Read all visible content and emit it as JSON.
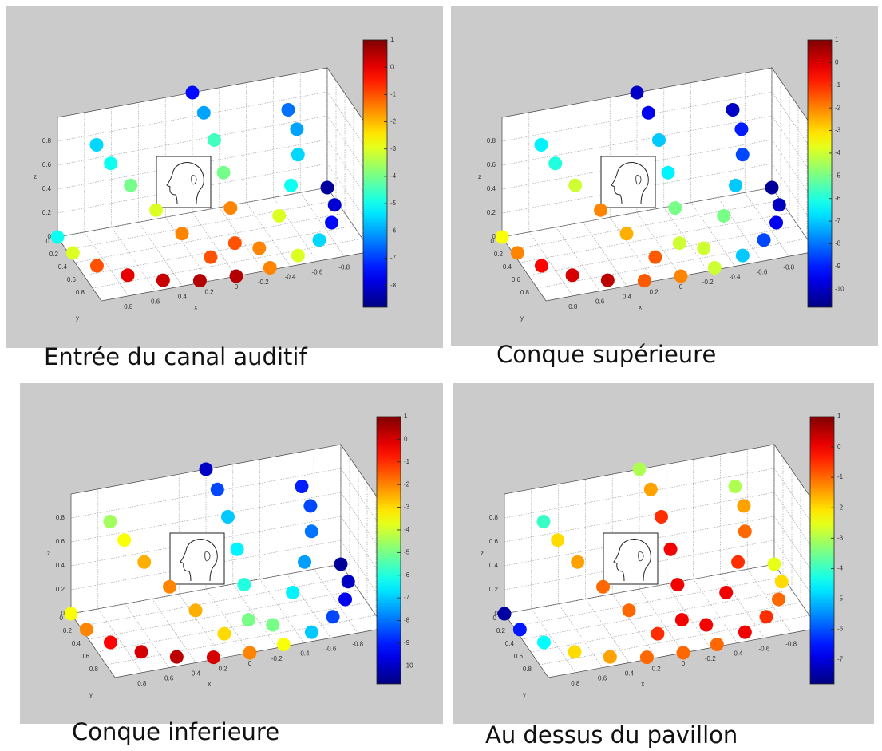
{
  "chart_data": [
    {
      "type": "scatter3d",
      "title": "Entrée du canal auditif",
      "xlabel": "x",
      "ylabel": "y",
      "zlabel": "z",
      "colormap": "jet",
      "grid": true,
      "xlim": [
        -1,
        1
      ],
      "ylim": [
        0,
        1
      ],
      "zlim": [
        0,
        1
      ],
      "xticks": [
        -0.8,
        -0.6,
        -0.4,
        -0.2,
        0,
        0.2,
        0.4,
        0.6,
        0.8
      ],
      "yticks": [
        0,
        0.2,
        0.4,
        0.6,
        0.8
      ],
      "zticks": [
        0,
        0.2,
        0.4,
        0.6,
        0.8
      ],
      "clim": [
        -8.8,
        1
      ],
      "cticks": [
        1,
        0,
        -1,
        -2,
        -3,
        -4,
        -5,
        -6,
        -7,
        -8
      ],
      "x": [
        1,
        0.97,
        0.87,
        0.71,
        0.5,
        0.26,
        0.71,
        0.69,
        0.62,
        0.5,
        0.36,
        0.18,
        0,
        0,
        0,
        0,
        0,
        0,
        -0.71,
        -0.69,
        -0.62,
        -0.5,
        -0.36,
        -0.18,
        -1,
        -0.97,
        -0.87,
        -0.71,
        -0.5,
        -0.26,
        0
      ],
      "y": [
        0,
        0.26,
        0.5,
        0.71,
        0.87,
        0.97,
        0,
        0.26,
        0.5,
        0.71,
        0.87,
        0.97,
        0,
        0.26,
        0.5,
        0.71,
        0.87,
        0.97,
        0,
        0.26,
        0.5,
        0.71,
        0.87,
        0.97,
        0,
        0.26,
        0.5,
        0.71,
        0.87,
        0.97,
        1
      ],
      "z": [
        0,
        0,
        0,
        0,
        0,
        0,
        0.71,
        0.69,
        0.62,
        0.5,
        0.36,
        0.18,
        1,
        0.97,
        0.87,
        0.71,
        0.5,
        0.26,
        0.71,
        0.69,
        0.62,
        0.5,
        0.36,
        0.18,
        0,
        0,
        0,
        0,
        0,
        0,
        0
      ],
      "values": [
        -5,
        -3,
        -1,
        0,
        0.3,
        0.5,
        -5.5,
        -5,
        -4,
        -3,
        -1.5,
        -1,
        -7.5,
        -6,
        -4.5,
        -4,
        -1.5,
        -1,
        -6.5,
        -6,
        -5.5,
        -5,
        -3,
        -1.5,
        -8.5,
        -8,
        -7.5,
        -5.5,
        -3,
        -1.5,
        0.5
      ]
    },
    {
      "type": "scatter3d",
      "title": "Conque supérieure",
      "xlabel": "x",
      "ylabel": "y",
      "zlabel": "z",
      "colormap": "jet",
      "grid": true,
      "xlim": [
        -1,
        1
      ],
      "ylim": [
        0,
        1
      ],
      "zlim": [
        0,
        1
      ],
      "xticks": [
        -0.8,
        -0.6,
        -0.4,
        -0.2,
        0,
        0.2,
        0.4,
        0.6,
        0.8
      ],
      "yticks": [
        0,
        0.2,
        0.4,
        0.6,
        0.8
      ],
      "zticks": [
        0,
        0.2,
        0.4,
        0.6,
        0.8
      ],
      "clim": [
        -10.8,
        1
      ],
      "cticks": [
        1,
        0,
        -1,
        -2,
        -3,
        -4,
        -5,
        -6,
        -7,
        -8,
        -9,
        -10
      ],
      "x": [
        1,
        0.97,
        0.87,
        0.71,
        0.5,
        0.26,
        0.71,
        0.69,
        0.62,
        0.5,
        0.36,
        0.18,
        0,
        0,
        0,
        0,
        0,
        0,
        -0.71,
        -0.69,
        -0.62,
        -0.5,
        -0.36,
        -0.18,
        -1,
        -0.97,
        -0.87,
        -0.71,
        -0.5,
        -0.26,
        0
      ],
      "y": [
        0,
        0.26,
        0.5,
        0.71,
        0.87,
        0.97,
        0,
        0.26,
        0.5,
        0.71,
        0.87,
        0.97,
        0,
        0.26,
        0.5,
        0.71,
        0.87,
        0.97,
        0,
        0.26,
        0.5,
        0.71,
        0.87,
        0.97,
        0,
        0.26,
        0.5,
        0.71,
        0.87,
        0.97,
        1
      ],
      "z": [
        0,
        0,
        0,
        0,
        0,
        0,
        0.71,
        0.69,
        0.62,
        0.5,
        0.36,
        0.18,
        1,
        0.97,
        0.87,
        0.71,
        0.5,
        0.26,
        0.71,
        0.69,
        0.62,
        0.5,
        0.36,
        0.18,
        0,
        0,
        0,
        0,
        0,
        0,
        0
      ],
      "values": [
        -3.5,
        -2,
        -0.5,
        0,
        0.3,
        -1.5,
        -6.5,
        -6,
        -4,
        -2,
        -2.5,
        -1.5,
        -10,
        -9.5,
        -7,
        -6.5,
        -5,
        -4,
        -10,
        -9,
        -8.5,
        -7,
        -5,
        -4,
        -10.5,
        -10,
        -9.5,
        -8.5,
        -7,
        -4,
        -2
      ]
    },
    {
      "type": "scatter3d",
      "title": "Conque inferieure",
      "xlabel": "x",
      "ylabel": "y",
      "zlabel": "z",
      "colormap": "jet",
      "grid": true,
      "xlim": [
        -1,
        1
      ],
      "ylim": [
        0,
        1
      ],
      "zlim": [
        0,
        1
      ],
      "xticks": [
        -0.8,
        -0.6,
        -0.4,
        -0.2,
        0,
        0.2,
        0.4,
        0.6,
        0.8
      ],
      "yticks": [
        0,
        0.2,
        0.4,
        0.6,
        0.8
      ],
      "zticks": [
        0,
        0.2,
        0.4,
        0.6,
        0.8
      ],
      "clim": [
        -10.8,
        1
      ],
      "cticks": [
        1,
        0,
        -1,
        -2,
        -3,
        -4,
        -5,
        -6,
        -7,
        -8,
        -9,
        -10
      ],
      "x": [
        1,
        0.97,
        0.87,
        0.71,
        0.5,
        0.26,
        0.71,
        0.69,
        0.62,
        0.5,
        0.36,
        0.18,
        0,
        0,
        0,
        0,
        0,
        0,
        -0.71,
        -0.69,
        -0.62,
        -0.5,
        -0.36,
        -0.18,
        -1,
        -0.97,
        -0.87,
        -0.71,
        -0.5,
        -0.26,
        0
      ],
      "y": [
        0,
        0.26,
        0.5,
        0.71,
        0.87,
        0.97,
        0,
        0.26,
        0.5,
        0.71,
        0.87,
        0.97,
        0,
        0.26,
        0.5,
        0.71,
        0.87,
        0.97,
        0,
        0.26,
        0.5,
        0.71,
        0.87,
        0.97,
        0,
        0.26,
        0.5,
        0.71,
        0.87,
        0.97,
        1
      ],
      "z": [
        0,
        0,
        0,
        0,
        0,
        0,
        0.71,
        0.69,
        0.62,
        0.5,
        0.36,
        0.18,
        1,
        0.97,
        0.87,
        0.71,
        0.5,
        0.26,
        0.71,
        0.69,
        0.62,
        0.5,
        0.36,
        0.18,
        0,
        0,
        0,
        0,
        0,
        0,
        0
      ],
      "values": [
        -3.5,
        -2,
        -0.5,
        0,
        0.3,
        0,
        -4.5,
        -3.5,
        -2.5,
        -2,
        -2.5,
        -3,
        -10,
        -8.5,
        -7,
        -6.5,
        -6,
        -5,
        -9,
        -8.5,
        -8,
        -7.5,
        -6.5,
        -5,
        -10.5,
        -10,
        -9.5,
        -8.5,
        -7,
        -3.5,
        -2
      ]
    },
    {
      "type": "scatter3d",
      "title": "Au dessus du pavillon",
      "xlabel": "x",
      "ylabel": "y",
      "zlabel": "z",
      "colormap": "jet",
      "grid": true,
      "xlim": [
        -1,
        1
      ],
      "ylim": [
        0,
        1
      ],
      "zlim": [
        0,
        1
      ],
      "xticks": [
        -0.8,
        -0.6,
        -0.4,
        -0.2,
        0,
        0.2,
        0.4,
        0.6,
        0.8
      ],
      "yticks": [
        0,
        0.2,
        0.4,
        0.6,
        0.8
      ],
      "zticks": [
        0,
        0.2,
        0.4,
        0.6,
        0.8
      ],
      "clim": [
        -7.8,
        1
      ],
      "cticks": [
        1,
        0,
        -1,
        -2,
        -3,
        -4,
        -5,
        -6,
        -7
      ],
      "x": [
        1,
        0.97,
        0.87,
        0.71,
        0.5,
        0.26,
        0.71,
        0.69,
        0.62,
        0.5,
        0.36,
        0.18,
        0,
        0,
        0,
        0,
        0,
        0,
        -0.71,
        -0.69,
        -0.62,
        -0.5,
        -0.36,
        -0.18,
        -1,
        -0.97,
        -0.87,
        -0.71,
        -0.5,
        -0.26,
        0
      ],
      "y": [
        0,
        0.26,
        0.5,
        0.71,
        0.87,
        0.97,
        0,
        0.26,
        0.5,
        0.71,
        0.87,
        0.97,
        0,
        0.26,
        0.5,
        0.71,
        0.87,
        0.97,
        0,
        0.26,
        0.5,
        0.71,
        0.87,
        0.97,
        0,
        0.26,
        0.5,
        0.71,
        0.87,
        0.97,
        1
      ],
      "z": [
        0,
        0,
        0,
        0,
        0,
        0,
        0.71,
        0.69,
        0.62,
        0.5,
        0.36,
        0.18,
        1,
        0.97,
        0.87,
        0.71,
        0.5,
        0.26,
        0.71,
        0.69,
        0.62,
        0.5,
        0.36,
        0.18,
        0,
        0,
        0,
        0,
        0,
        0,
        0
      ],
      "values": [
        -7.5,
        -6.5,
        -4.5,
        -2,
        -1.5,
        -1,
        -4,
        -2,
        -1.5,
        -1,
        -1,
        -0.5,
        -3,
        -1.5,
        -0.5,
        0,
        0,
        0,
        -3,
        -1.5,
        -1,
        -0.5,
        0,
        0,
        -2.5,
        -2,
        -1,
        -0.5,
        0,
        -1,
        -1
      ]
    }
  ]
}
